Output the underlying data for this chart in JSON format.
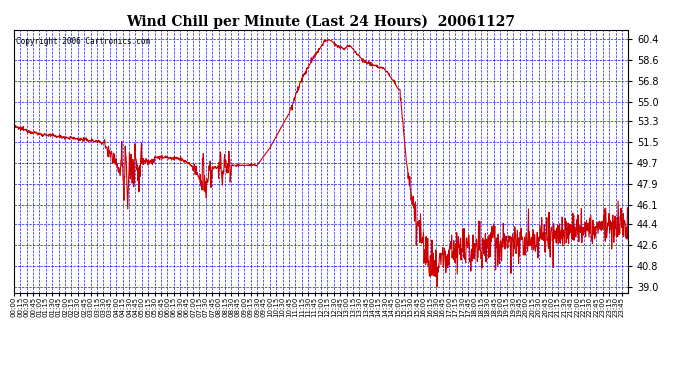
{
  "title": "Wind Chill per Minute (Last 24 Hours)  20061127",
  "copyright": "Copyright 2006 Cartronics.com",
  "yticks": [
    39.0,
    40.8,
    42.6,
    44.4,
    46.1,
    47.9,
    49.7,
    51.5,
    53.3,
    55.0,
    56.8,
    58.6,
    60.4
  ],
  "ylim": [
    38.5,
    61.2
  ],
  "background_color": "#FFFFFF",
  "plot_bg_color": "#FFFFFF",
  "grid_color": "#0000FF",
  "line_color": "#CC0000",
  "title_color": "#000000",
  "copyright_color": "#000000",
  "total_minutes": 1440,
  "line_width": 0.8,
  "title_fontsize": 10,
  "ytick_fontsize": 7,
  "xtick_fontsize": 5
}
